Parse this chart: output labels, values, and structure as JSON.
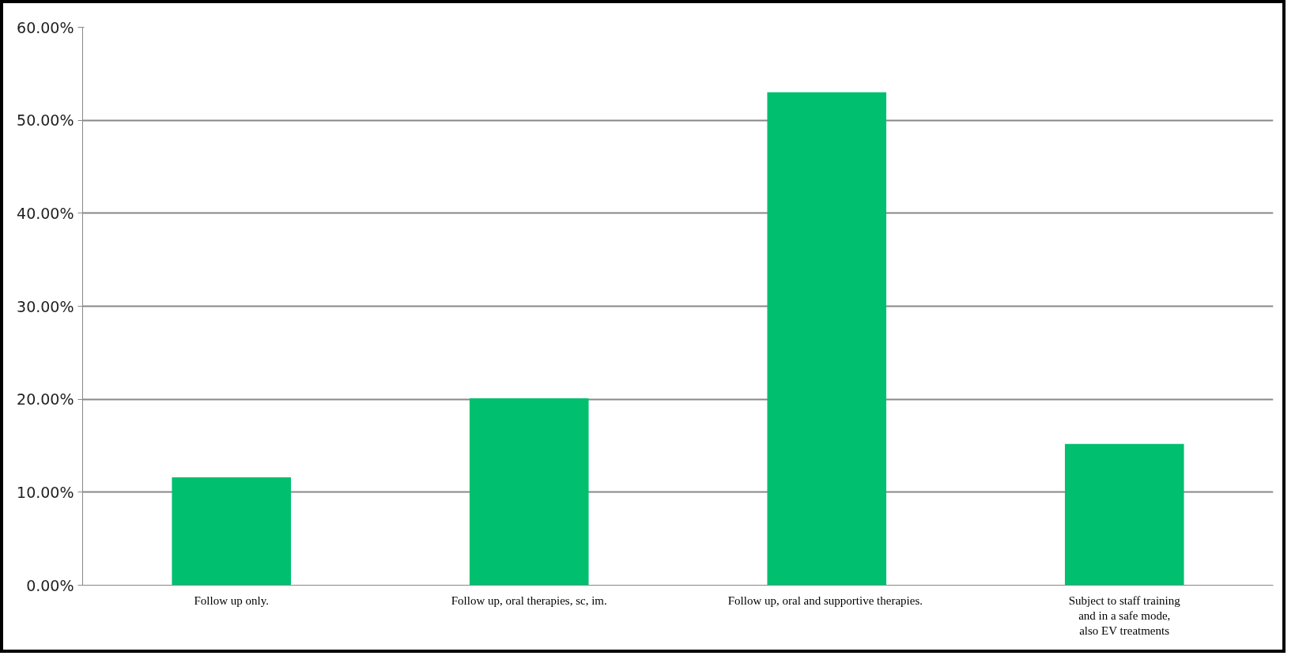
{
  "chart_data": {
    "type": "bar",
    "categories": [
      "Follow up only.",
      "Follow up, oral therapies, sc, im.",
      "Follow up, oral and supportive  therapies.",
      "Subject to staff training\nand in a safe mode,\nalso EV treatments"
    ],
    "values": [
      11.6,
      20.1,
      53.0,
      15.2
    ],
    "color": "#00bf6f",
    "ylim": [
      0,
      60
    ],
    "yticks": [
      {
        "value": 0,
        "label": "0.00%"
      },
      {
        "value": 10,
        "label": "10.00%"
      },
      {
        "value": 20,
        "label": "20.00%"
      },
      {
        "value": 30,
        "label": "30.00%"
      },
      {
        "value": 40,
        "label": "40.00%"
      },
      {
        "value": 50,
        "label": "50.00%"
      },
      {
        "value": 60,
        "label": "60.00%"
      }
    ],
    "grid": "y"
  }
}
